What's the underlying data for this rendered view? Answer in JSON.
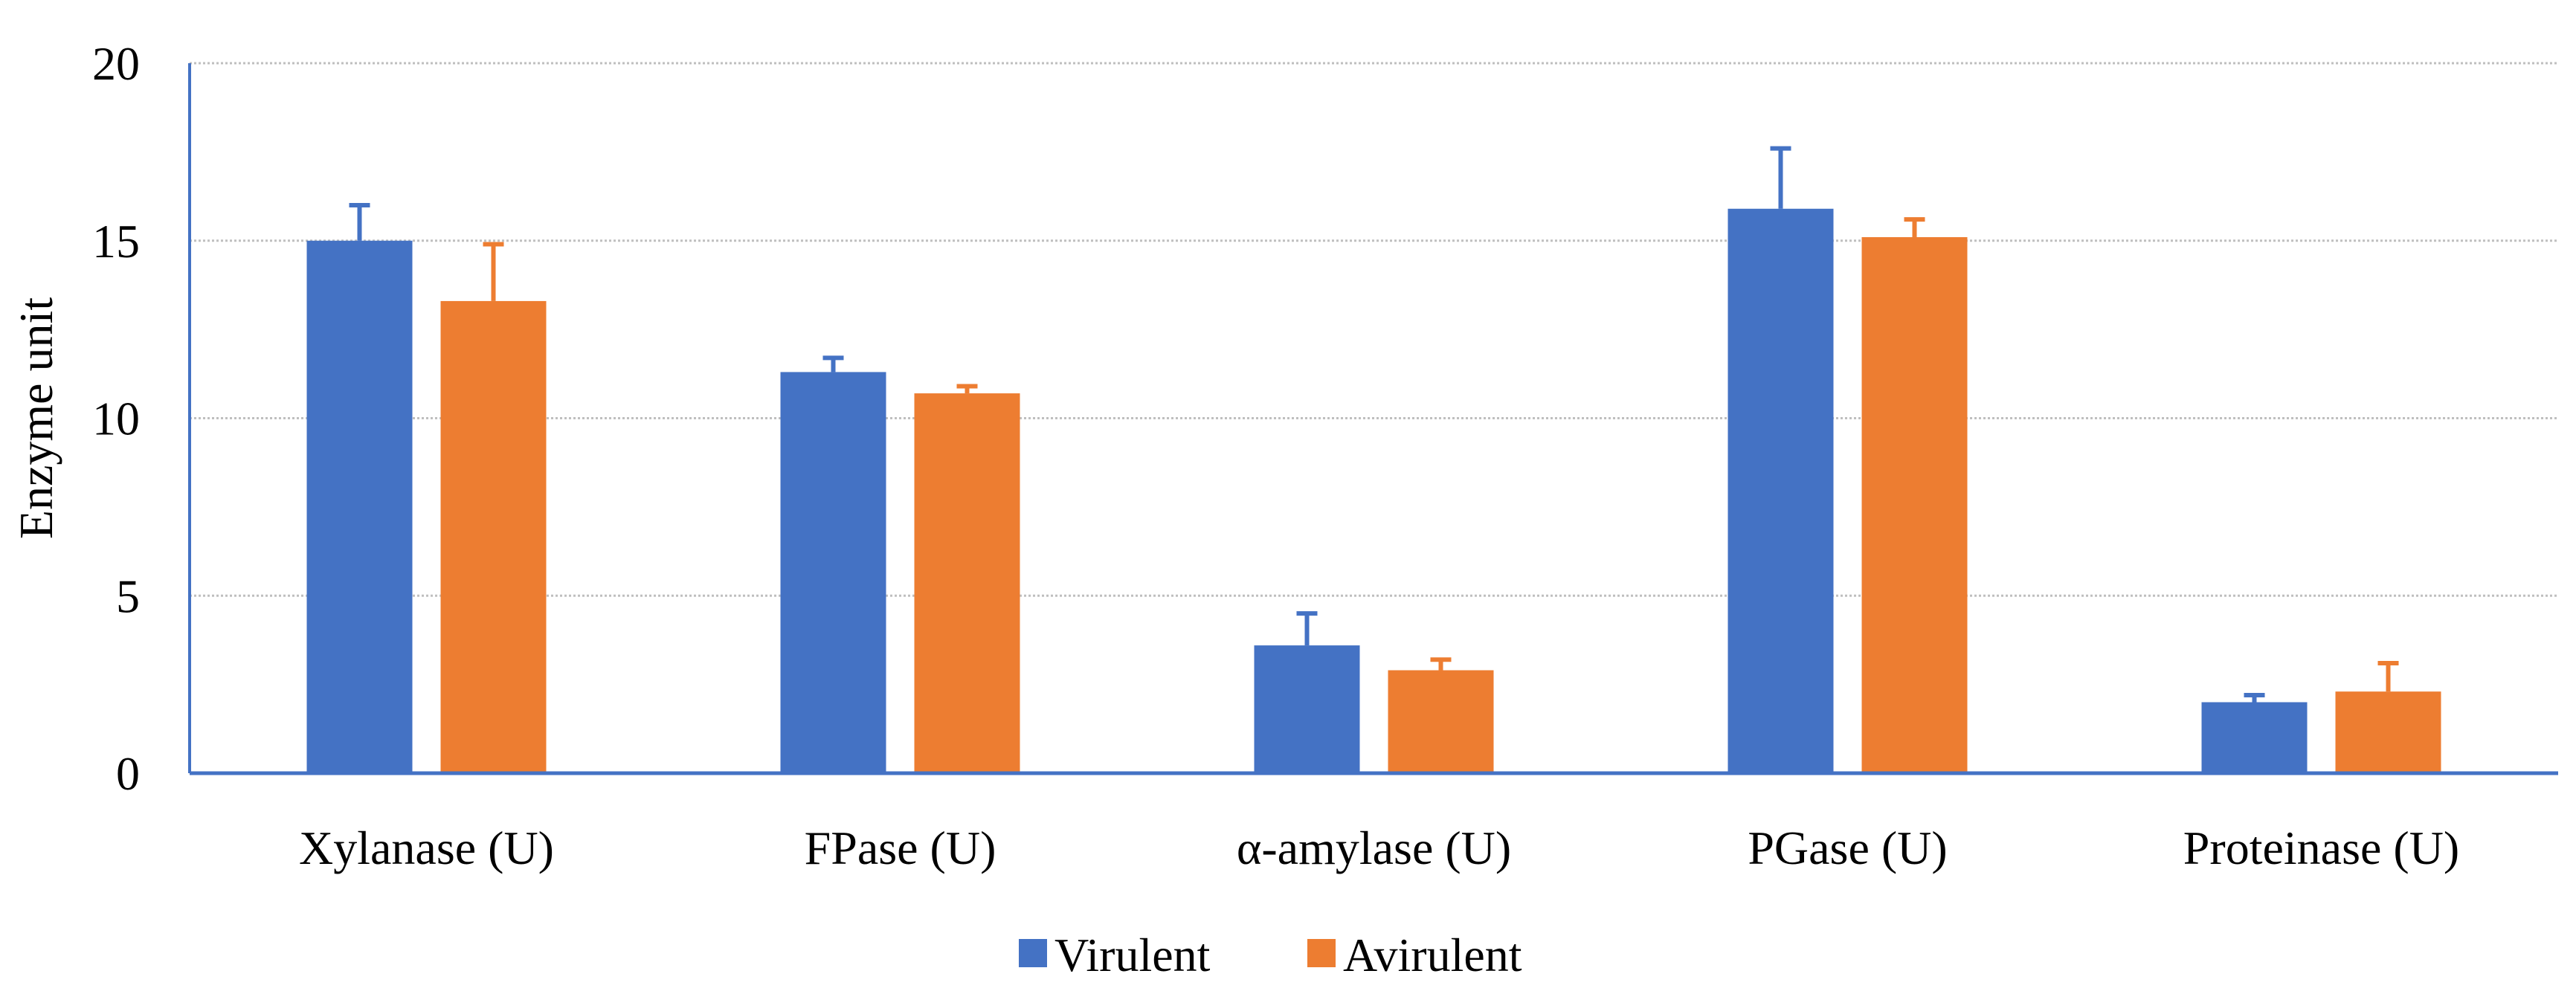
{
  "chart_data": {
    "type": "bar",
    "title": "",
    "xlabel": "",
    "ylabel": "Enzyme unit",
    "ylim": [
      0,
      20
    ],
    "yticks": [
      0,
      5,
      10,
      15,
      20
    ],
    "grid": true,
    "legend_position": "bottom-center",
    "categories": [
      "Xylanase (U)",
      "FPase (U)",
      "α-amylase (U)",
      "PGase (U)",
      "Proteinase (U)"
    ],
    "series": [
      {
        "name": "Virulent",
        "color": "#4472C4",
        "values": [
          15.0,
          11.3,
          3.6,
          15.9,
          2.0
        ],
        "errors": [
          1.0,
          0.4,
          0.9,
          1.7,
          0.2
        ]
      },
      {
        "name": "Avirulent",
        "color": "#ED7D31",
        "values": [
          13.3,
          10.7,
          2.9,
          15.1,
          2.3
        ],
        "errors": [
          1.6,
          0.2,
          0.3,
          0.5,
          0.8
        ]
      }
    ]
  },
  "colors": {
    "axis": "#4472C4",
    "grid": "#bfbfbf"
  }
}
